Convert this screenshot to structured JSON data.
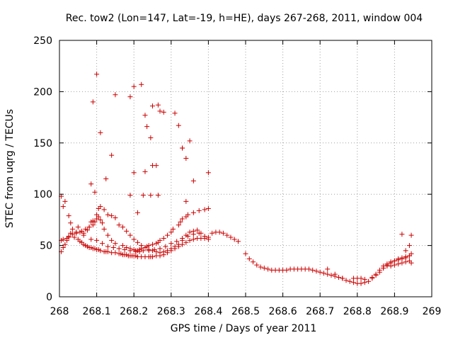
{
  "chart_data": {
    "type": "scatter",
    "title": "Rec. tow2 (Lon=147, Lat=-19, h=HE), days 267-268, 2011, window 004",
    "xlabel": "GPS time / Days of year 2011",
    "ylabel": "STEC from uqrg / TECUs",
    "xlim": [
      268,
      269
    ],
    "ylim": [
      0,
      250
    ],
    "xticks": [
      268,
      268.1,
      268.2,
      268.3,
      268.4,
      268.5,
      268.6,
      268.7,
      268.8,
      268.9,
      269
    ],
    "xtick_labels": [
      "268",
      "268.1",
      "268.2",
      "268.3",
      "268.4",
      "268.5",
      "268.6",
      "268.7",
      "268.8",
      "268.9",
      "269"
    ],
    "yticks": [
      0,
      50,
      100,
      150,
      200,
      250
    ],
    "ytick_labels": [
      "0",
      "50",
      "100",
      "150",
      "200",
      "250"
    ],
    "grid": true,
    "marker": "+",
    "color": "#cc0000",
    "series": [
      {
        "name": "",
        "x": [
          268.005,
          268.01,
          268.015,
          268.02,
          268.025,
          268.03,
          268.04,
          268.05,
          268.055,
          268.06,
          268.065,
          268.07,
          268.075,
          268.08,
          268.085,
          268.09,
          268.095,
          268.1,
          268.105,
          268.11,
          268.12,
          268.125,
          268.13,
          268.14,
          268.15,
          268.16,
          268.165,
          268.17,
          268.175,
          268.18,
          268.185,
          268.19,
          268.195,
          268.2,
          268.205,
          268.21,
          268.22,
          268.23,
          268.24,
          268.245,
          268.25,
          268.26,
          268.27,
          268.28,
          268.29,
          268.3,
          268.31,
          268.32,
          268.33,
          268.34,
          268.35,
          268.36,
          268.37,
          268.38,
          268.39,
          268.4,
          268.41,
          268.42,
          268.43,
          268.44,
          268.45,
          268.46,
          268.47,
          268.48,
          268.005,
          268.015,
          268.025,
          268.035,
          268.045,
          268.055,
          268.065,
          268.075,
          268.08,
          268.085,
          268.09,
          268.1,
          268.105,
          268.11,
          268.12,
          268.13,
          268.14,
          268.15,
          268.16,
          268.17,
          268.18,
          268.19,
          268.2,
          268.21,
          268.22,
          268.23,
          268.24,
          268.25,
          268.26,
          268.27,
          268.28,
          268.29,
          268.3,
          268.31,
          268.32,
          268.33,
          268.34,
          268.35,
          268.36,
          268.37,
          268.38,
          268.39,
          268.4,
          268.01,
          268.03,
          268.05,
          268.065,
          268.085,
          268.1,
          268.115,
          268.13,
          268.145,
          268.16,
          268.175,
          268.19,
          268.205,
          268.215,
          268.225,
          268.24,
          268.255,
          268.27,
          268.285,
          268.3,
          268.315,
          268.33,
          268.345,
          268.36,
          268.375,
          268.005,
          268.01,
          268.02,
          268.025,
          268.035,
          268.045,
          268.06,
          268.07,
          268.08,
          268.09,
          268.095,
          268.1,
          268.105,
          268.11,
          268.115,
          268.12,
          268.13,
          268.14,
          268.15,
          268.17,
          268.18,
          268.19,
          268.2,
          268.205,
          268.21,
          268.215,
          268.22,
          268.23,
          268.235,
          268.24,
          268.25,
          268.26,
          268.265,
          268.27,
          268.28,
          268.29,
          268.3,
          268.305,
          268.32,
          268.325,
          268.33,
          268.34,
          268.345,
          268.36,
          268.375,
          268.39,
          268.4,
          268.5,
          268.51,
          268.52,
          268.53,
          268.54,
          268.55,
          268.56,
          268.57,
          268.58,
          268.59,
          268.6,
          268.61,
          268.62,
          268.63,
          268.64,
          268.65,
          268.66,
          268.67,
          268.68,
          268.69,
          268.7,
          268.71,
          268.72,
          268.73,
          268.74,
          268.75,
          268.76,
          268.77,
          268.78,
          268.79,
          268.8,
          268.81,
          268.82,
          268.83,
          268.84,
          268.85,
          268.86,
          268.87,
          268.88,
          268.89,
          268.9,
          268.91,
          268.92,
          268.93,
          268.94,
          268.945,
          268.72,
          268.74,
          268.76,
          268.79,
          268.8,
          268.81,
          268.82,
          268.84,
          268.85,
          268.86,
          268.87,
          268.88,
          268.89,
          268.9,
          268.91,
          268.92,
          268.93,
          268.94,
          268.945,
          268.87,
          268.88,
          268.89,
          268.9,
          268.91,
          268.92,
          268.93,
          268.94,
          268.93,
          268.94,
          268.945,
          268.92
        ],
        "y": [
          44,
          48,
          51,
          55,
          58,
          62,
          58,
          56,
          54,
          53,
          51,
          50,
          49,
          48,
          48,
          47,
          47,
          46,
          46,
          45,
          44,
          44,
          44,
          43,
          43,
          42,
          42,
          41,
          41,
          41,
          40,
          40,
          40,
          40,
          40,
          39,
          39,
          39,
          39,
          39,
          39,
          40,
          40,
          41,
          43,
          45,
          47,
          49,
          51,
          53,
          55,
          56,
          57,
          57,
          57,
          58,
          62,
          63,
          63,
          62,
          60,
          58,
          56,
          54,
          98,
          93,
          79,
          66,
          62,
          63,
          62,
          65,
          68,
          73,
          74,
          80,
          86,
          88,
          85,
          80,
          79,
          77,
          70,
          68,
          64,
          60,
          56,
          53,
          50,
          48,
          46,
          45,
          44,
          43,
          44,
          45,
          47,
          49,
          51,
          55,
          60,
          63,
          64,
          65,
          62,
          59,
          56,
          88,
          72,
          68,
          60,
          56,
          55,
          52,
          49,
          48,
          47,
          46,
          45,
          44,
          44,
          45,
          45,
          46,
          47,
          49,
          52,
          54,
          57,
          59,
          61,
          62,
          55,
          56,
          57,
          59,
          61,
          63,
          64,
          66,
          68,
          70,
          73,
          76,
          78,
          75,
          72,
          66,
          60,
          55,
          52,
          50,
          48,
          47,
          46,
          45,
          45,
          46,
          47,
          48,
          49,
          50,
          51,
          52,
          53,
          55,
          57,
          60,
          63,
          66,
          70,
          73,
          76,
          78,
          80,
          82,
          84,
          85,
          86,
          42,
          37,
          34,
          31,
          29,
          28,
          27,
          26,
          26,
          26,
          26,
          26,
          27,
          27,
          27,
          27,
          27,
          27,
          26,
          25,
          24,
          23,
          22,
          21,
          20,
          19,
          18,
          16,
          15,
          14,
          13,
          13,
          14,
          15,
          18,
          21,
          24,
          28,
          31,
          33,
          35,
          37,
          38,
          39,
          40,
          42,
          27,
          22,
          18,
          18,
          18,
          18,
          17,
          19,
          22,
          26,
          28,
          30,
          30,
          31,
          32,
          33,
          34,
          35,
          33,
          30,
          32,
          34,
          35,
          36,
          37,
          38,
          40,
          45,
          50,
          60,
          61
        ],
        "extra": {
          "x": [
            268.1,
            268.11,
            268.095,
            268.09,
            268.085,
            268.125,
            268.14,
            268.15,
            268.19,
            268.2,
            268.22,
            268.23,
            268.245,
            268.25,
            268.265,
            268.26,
            268.27,
            268.28,
            268.31,
            268.32,
            268.33,
            268.34,
            268.35,
            268.36,
            268.235,
            268.25,
            268.2,
            268.19,
            268.23,
            268.33,
            268.4,
            268.265,
            268.245,
            268.225,
            268.21,
            268.34
          ],
          "y": [
            217,
            160,
            102,
            190,
            110,
            115,
            138,
            197,
            195,
            205,
            207,
            177,
            155,
            186,
            187,
            128,
            181,
            180,
            179,
            167,
            145,
            135,
            152,
            113,
            166,
            128,
            121,
            99,
            122,
            145,
            121,
            99,
            99,
            99,
            82,
            93
          ]
        }
      }
    ]
  }
}
